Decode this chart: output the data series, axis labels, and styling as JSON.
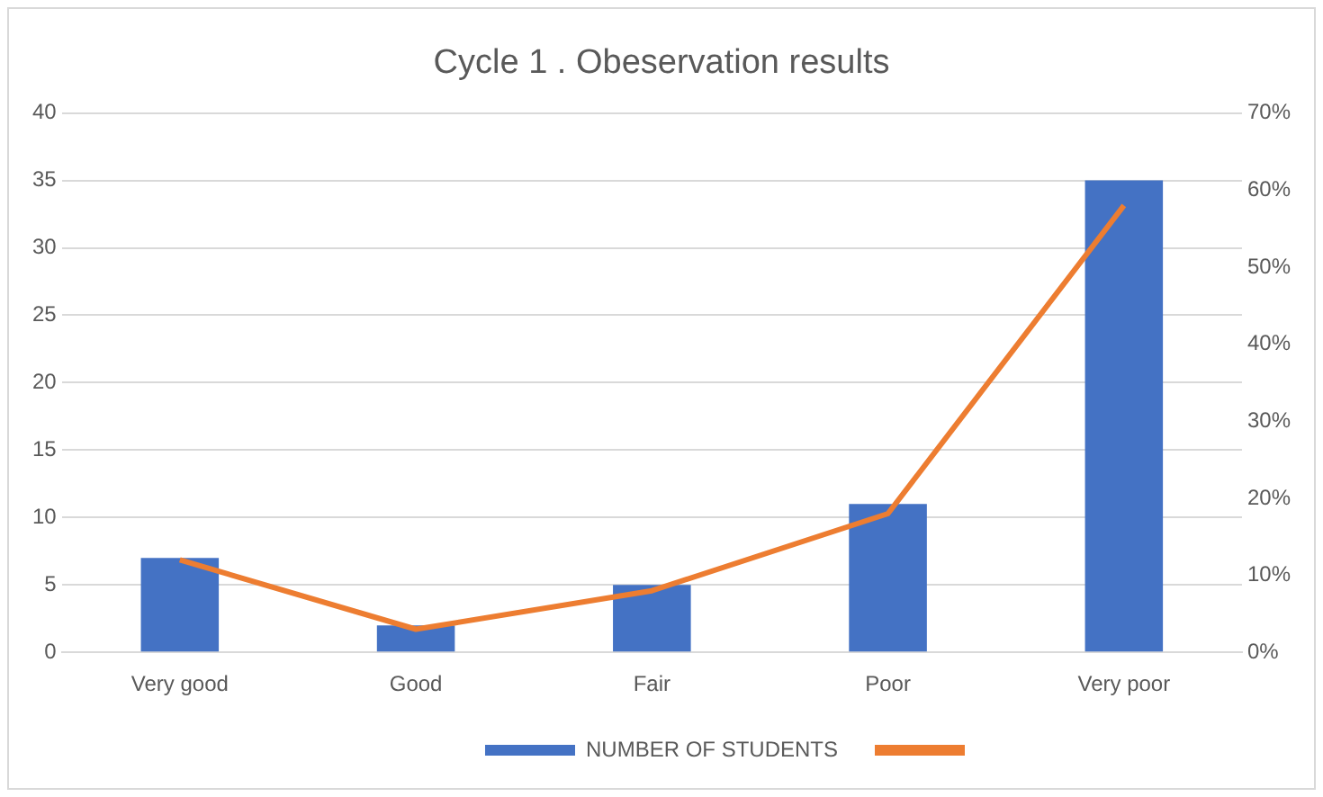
{
  "chart_data": {
    "type": "bar",
    "title": "Cycle 1 . Obeservation results",
    "categories": [
      "Very good",
      "Good",
      "Fair",
      "Poor",
      "Very poor"
    ],
    "series": [
      {
        "name": "NUMBER OF STUDENTS",
        "color": "#4472c4",
        "values": [
          7,
          2,
          5,
          11,
          35
        ]
      },
      {
        "type": "line",
        "axis": "y2",
        "color": "#ed7d31",
        "values": [
          12,
          3,
          8,
          18,
          58
        ]
      }
    ],
    "ylim": [
      0,
      40
    ],
    "yticks": [
      0,
      5,
      10,
      15,
      20,
      25,
      30,
      35,
      40
    ],
    "y2lim": [
      0,
      70
    ],
    "y2ticks": [
      {
        "value": 0,
        "label": "0%"
      },
      {
        "value": 10,
        "label": "10%"
      },
      {
        "value": 20,
        "label": "20%"
      },
      {
        "value": 30,
        "label": "30%"
      },
      {
        "value": 40,
        "label": "40%"
      },
      {
        "value": 50,
        "label": "50%"
      },
      {
        "value": 60,
        "label": "60%"
      },
      {
        "value": 70,
        "label": "70%"
      }
    ],
    "grid": "y",
    "legend": "bottom",
    "marker": "none"
  }
}
